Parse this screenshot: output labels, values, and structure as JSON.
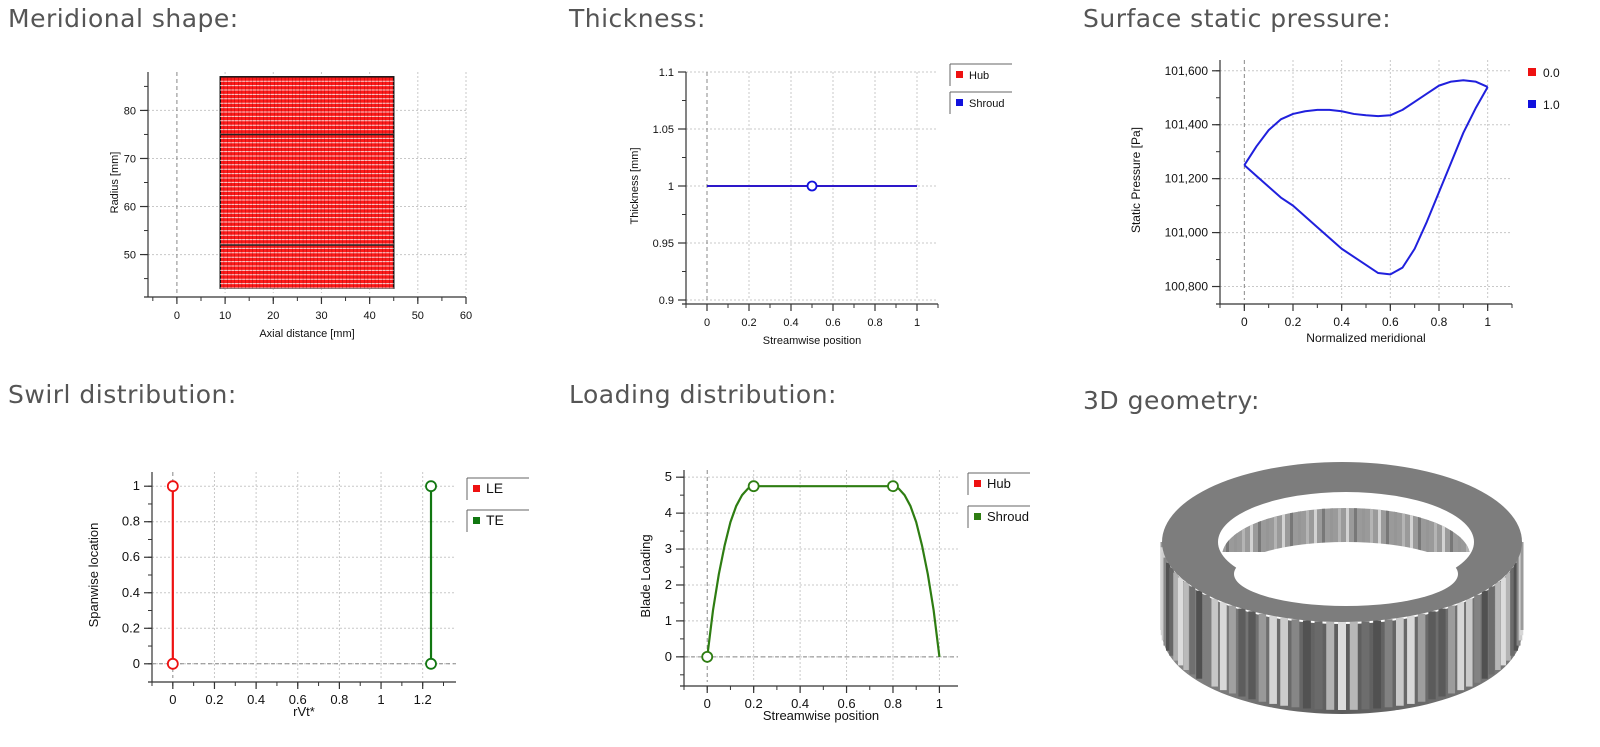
{
  "page": {
    "colors": {
      "hub": "#ee1111",
      "shroud": "#1111dd",
      "le": "#ee1111",
      "te": "#117711",
      "load": "#2e7d12",
      "grid": "#c8c8c8",
      "axis": "#333333",
      "ring_top": "#7a7a7a",
      "ring_side": "#6a6a6a"
    }
  },
  "panels": {
    "meridional": {
      "title": "Meridional shape:",
      "chart_data": {
        "type": "area",
        "xlabel": "Axial distance [mm]",
        "ylabel": "Radius [mm]",
        "xlim": [
          -6,
          60
        ],
        "ylim": [
          42,
          88
        ],
        "xticks": [
          0,
          10,
          20,
          30,
          40,
          50,
          60
        ],
        "yticks": [
          50,
          60,
          70,
          80
        ],
        "region": {
          "x": [
            9,
            45
          ],
          "y": [
            43,
            87
          ]
        },
        "inner_lines_y": [
          75,
          52
        ],
        "fill_color": "#ff1a1a"
      }
    },
    "thickness": {
      "title": "Thickness:",
      "chart_data": {
        "type": "line",
        "xlabel": "Streamwise position",
        "ylabel": "Thickness [mm]",
        "xlim": [
          -0.1,
          1.1
        ],
        "ylim": [
          0.9,
          1.1
        ],
        "xticks": [
          0,
          0.2,
          0.4,
          0.6,
          0.8,
          1
        ],
        "yticks": [
          0.9,
          0.95,
          1,
          1.05,
          1.1
        ],
        "series": [
          {
            "name": "Hub",
            "color": "#ee1111",
            "x": [
              0,
              1
            ],
            "y": [
              1,
              1
            ]
          },
          {
            "name": "Shroud",
            "color": "#1111dd",
            "x": [
              0,
              1
            ],
            "y": [
              1,
              1
            ],
            "markers": [
              [
                0.5,
                1
              ]
            ]
          }
        ],
        "legend": "right"
      }
    },
    "pressure": {
      "title": "Surface static pressure:",
      "chart_data": {
        "type": "line",
        "xlabel": "Normalized meridional",
        "ylabel": "Static Pressure [Pa]",
        "xlim": [
          -0.1,
          1.1
        ],
        "ylim": [
          100750,
          101640
        ],
        "xticks": [
          0,
          0.2,
          0.4,
          0.6,
          0.8,
          1
        ],
        "yticks": [
          100800,
          101000,
          101200,
          101400,
          101600
        ],
        "series": [
          {
            "name": "0.0",
            "color": "#ee1111",
            "x": [
              0,
              0.05,
              0.1,
              0.15,
              0.2,
              0.3,
              0.4,
              0.5,
              0.55,
              0.6,
              0.65,
              0.7,
              0.75,
              0.8,
              0.85,
              0.9,
              0.95,
              1
            ],
            "y": [
              101250,
              101210,
              101170,
              101130,
              101100,
              101020,
              100940,
              100880,
              100850,
              100845,
              100870,
              100940,
              101040,
              101150,
              101260,
              101370,
              101460,
              101540
            ]
          },
          {
            "name": "1.0",
            "color": "#1111dd",
            "x": [
              0,
              0.05,
              0.1,
              0.15,
              0.2,
              0.25,
              0.3,
              0.35,
              0.4,
              0.45,
              0.5,
              0.55,
              0.6,
              0.65,
              0.7,
              0.75,
              0.8,
              0.85,
              0.9,
              0.95,
              1
            ],
            "y": [
              101250,
              101320,
              101380,
              101420,
              101440,
              101450,
              101455,
              101455,
              101450,
              101440,
              101435,
              101432,
              101435,
              101455,
              101485,
              101515,
              101545,
              101560,
              101565,
              101560,
              101540
            ]
          }
        ],
        "legend": "right"
      }
    },
    "swirl": {
      "title": "Swirl distribution:",
      "chart_data": {
        "type": "line",
        "xlabel": "rVt*",
        "ylabel": "Spanwise location",
        "xlim": [
          -0.1,
          1.36
        ],
        "ylim": [
          -0.08,
          1.08
        ],
        "xticks": [
          0,
          0.2,
          0.4,
          0.6,
          0.8,
          1,
          1.2
        ],
        "yticks": [
          0,
          0.2,
          0.4,
          0.6,
          0.8,
          1
        ],
        "series": [
          {
            "name": "LE",
            "color": "#ee1111",
            "x": [
              0,
              0
            ],
            "y": [
              0,
              1
            ],
            "markers": [
              [
                0,
                0
              ],
              [
                0,
                1
              ]
            ]
          },
          {
            "name": "TE",
            "color": "#117711",
            "x": [
              1.24,
              1.24
            ],
            "y": [
              0,
              1
            ],
            "markers": [
              [
                1.24,
                0
              ],
              [
                1.24,
                1
              ]
            ]
          }
        ],
        "legend": "right"
      }
    },
    "loading": {
      "title": "Loading distribution:",
      "chart_data": {
        "type": "line",
        "xlabel": "Streamwise position",
        "ylabel": "Blade Loading",
        "xlim": [
          -0.1,
          1.08
        ],
        "ylim": [
          -0.7,
          5.2
        ],
        "xticks": [
          0,
          0.2,
          0.4,
          0.6,
          0.8,
          1
        ],
        "yticks": [
          0,
          1,
          2,
          3,
          4,
          5
        ],
        "series": [
          {
            "name": "Hub",
            "color": "#ee1111",
            "x": [],
            "y": []
          },
          {
            "name": "Shroud",
            "color": "#2e7d12",
            "x": [
              0,
              0.025,
              0.05,
              0.075,
              0.1,
              0.125,
              0.15,
              0.175,
              0.2,
              0.8,
              0.825,
              0.85,
              0.875,
              0.9,
              0.925,
              0.95,
              0.975,
              1
            ],
            "y": [
              0,
              1.3,
              2.3,
              3.1,
              3.75,
              4.2,
              4.5,
              4.68,
              4.75,
              4.75,
              4.68,
              4.5,
              4.2,
              3.75,
              3.1,
              2.3,
              1.3,
              0
            ],
            "markers": [
              [
                0,
                0
              ],
              [
                0.2,
                4.75
              ],
              [
                0.8,
                4.75
              ]
            ]
          }
        ],
        "legend": "right"
      }
    },
    "geometry": {
      "title": "3D geometry:"
    }
  }
}
